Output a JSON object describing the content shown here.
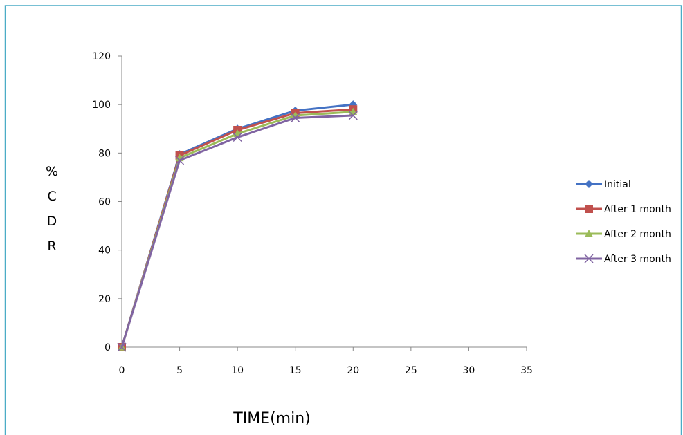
{
  "chart_data": {
    "type": "line",
    "title": "",
    "xlabel": "TIME(min)",
    "ylabel": "% C D R",
    "ylabel_chars": [
      "%",
      "C",
      "D",
      "R"
    ],
    "xlim": [
      0,
      35
    ],
    "ylim": [
      0,
      120
    ],
    "xticks": [
      "0",
      "5",
      "10",
      "15",
      "20",
      "25",
      "30",
      "35"
    ],
    "yticks": [
      "0",
      "20",
      "40",
      "60",
      "80",
      "100",
      "120"
    ],
    "grid": false,
    "legend_position": "right",
    "x": [
      0,
      5,
      10,
      15,
      20
    ],
    "series": [
      {
        "name": "Initial",
        "color": "#4472C4",
        "marker": "diamond",
        "values": [
          0,
          79.5,
          90,
          97.5,
          100
        ]
      },
      {
        "name": "After 1 month",
        "color": "#C0504D",
        "marker": "square",
        "values": [
          0,
          79,
          89.5,
          96.5,
          98
        ]
      },
      {
        "name": "After 2 month",
        "color": "#9BBB59",
        "marker": "triangle",
        "values": [
          0,
          78,
          88,
          95.5,
          97
        ]
      },
      {
        "name": "After 3 month",
        "color": "#8064A2",
        "marker": "x",
        "values": [
          0,
          77,
          86.5,
          94.5,
          95.5
        ]
      }
    ]
  },
  "frame_color": "#4BACC6"
}
